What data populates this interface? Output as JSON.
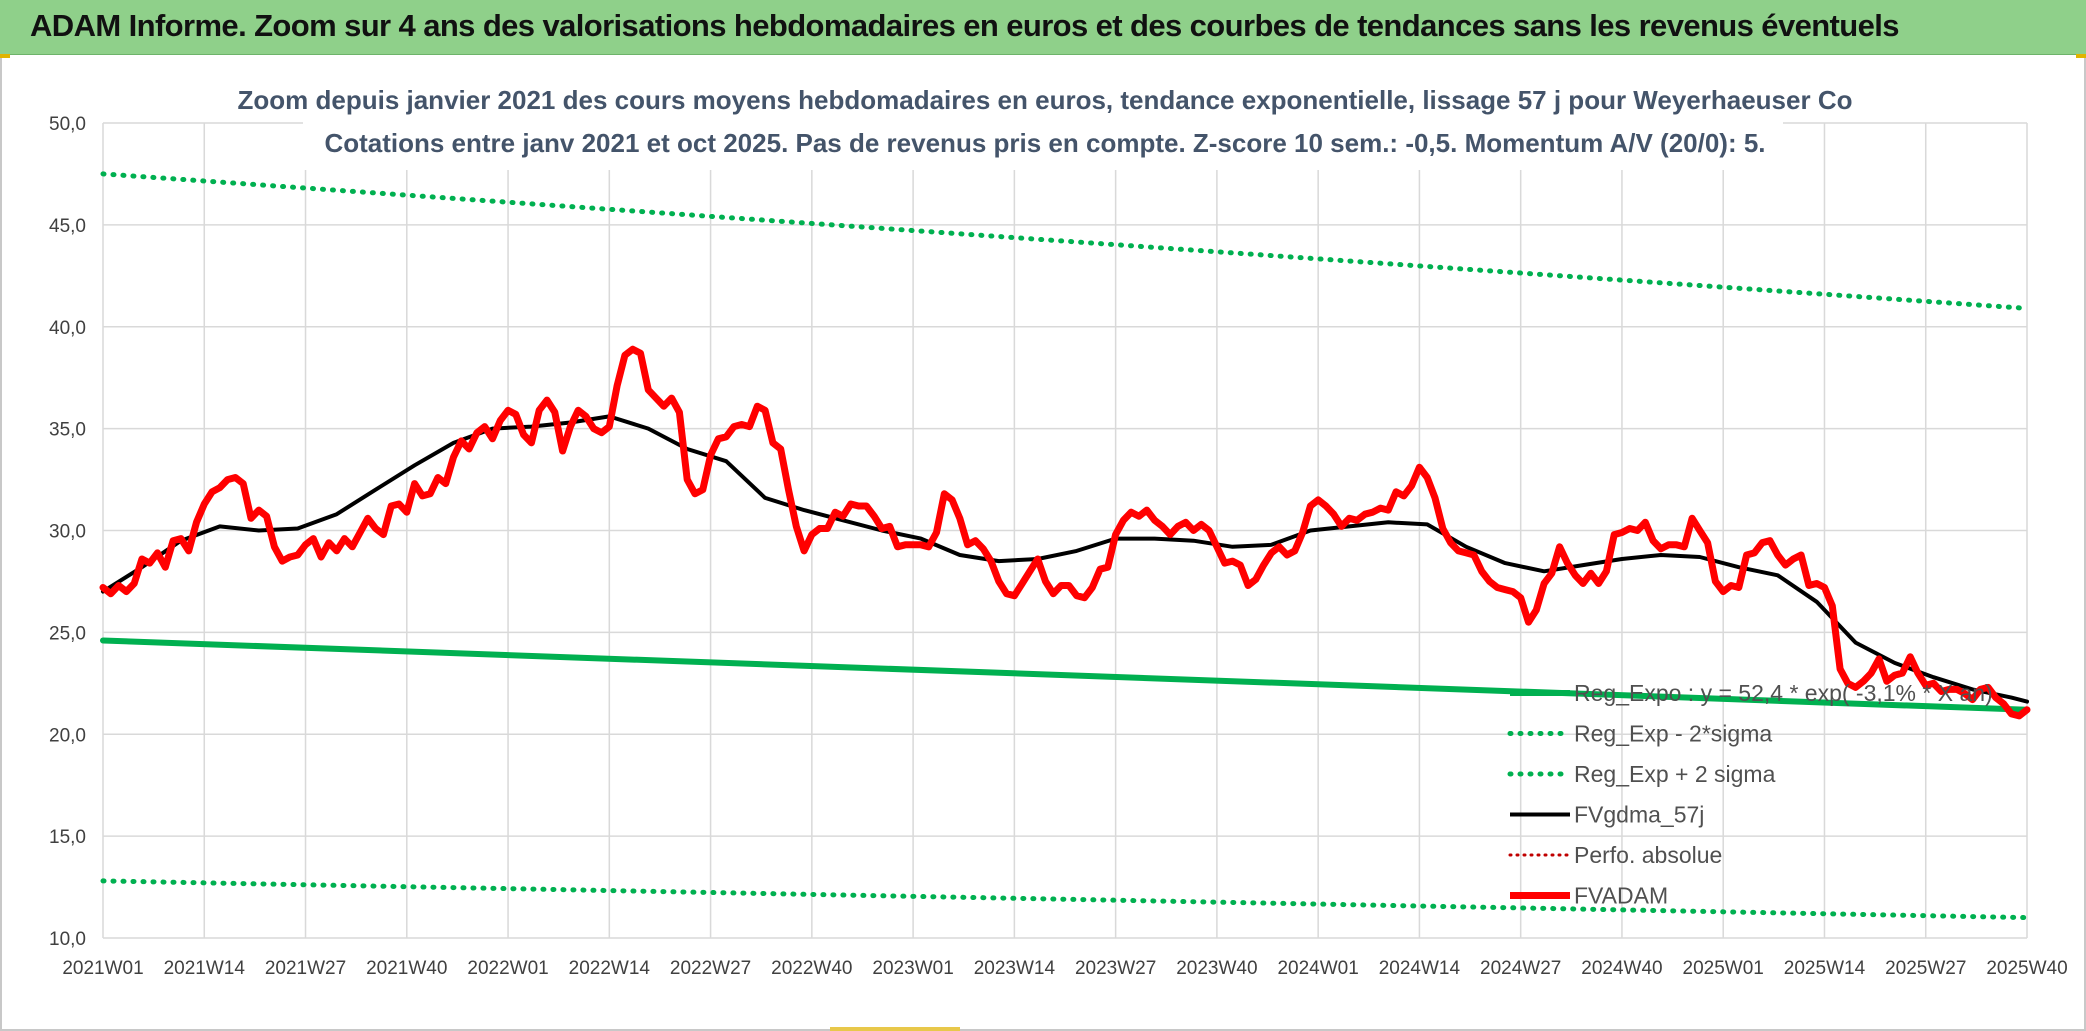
{
  "banner": {
    "title": "ADAM Informe. Zoom sur 4 ans des valorisations hebdomadaires en euros et des courbes de tendances sans les revenus éventuels"
  },
  "colors": {
    "banner": "#8fd08a",
    "trend_green": "#00b050",
    "fvadam_red": "#ff0000",
    "fvgdma_black": "#000000",
    "perfo_red": "#c00000",
    "grid": "#d9d9d9"
  },
  "chart_data": {
    "type": "line",
    "title": "Zoom depuis janvier 2021 des cours moyens hebdomadaires en euros, tendance exponentielle, lissage 57 j pour Weyerhaeuser Co",
    "subtitle": "Cotations entre janv 2021 et oct 2025. Pas de revenus pris en compte. Z-score 10 sem.: -0,5. Momentum A/V (20/0): 5.",
    "xlabel": "",
    "ylabel": "",
    "ylim": [
      10,
      50
    ],
    "y_ticks": [
      "10,0",
      "15,0",
      "20,0",
      "25,0",
      "30,0",
      "35,0",
      "40,0",
      "45,0",
      "50,0"
    ],
    "x_ticks": [
      "2021W01",
      "2021W14",
      "2021W27",
      "2021W40",
      "2022W01",
      "2022W14",
      "2022W27",
      "2022W40",
      "2023W01",
      "2023W14",
      "2023W27",
      "2023W40",
      "2024W01",
      "2024W14",
      "2024W27",
      "2024W40",
      "2025W01",
      "2025W14",
      "2025W27",
      "2025W40"
    ],
    "grid": true,
    "legend_position": "bottom-right",
    "x_range_weeks": [
      0,
      247
    ],
    "legend": [
      {
        "label": "Reg_Expo : y = 52,4 * exp( -3,1% * X an)",
        "style": "solid-thick-green"
      },
      {
        "label": "Reg_Exp - 2*sigma",
        "style": "dotted-green"
      },
      {
        "label": "Reg_Exp + 2 sigma",
        "style": "dotted-green"
      },
      {
        "label": "FVgdma_57j",
        "style": "solid-black"
      },
      {
        "label": "Perfo. absolue",
        "style": "dotted-red"
      },
      {
        "label": "FVADAM",
        "style": "solid-thick-red"
      }
    ],
    "series": [
      {
        "name": "Reg_Expo : y = 52,4 * exp( -3,1% * X an)",
        "x": [
          0,
          247
        ],
        "values": [
          24.6,
          21.2
        ]
      },
      {
        "name": "Reg_Exp - 2*sigma",
        "x": [
          0,
          247
        ],
        "values": [
          12.8,
          11.0
        ]
      },
      {
        "name": "Reg_Exp + 2 sigma",
        "x": [
          0,
          247
        ],
        "values": [
          47.5,
          40.9
        ]
      },
      {
        "name": "FVgdma_57j",
        "x": [
          0,
          5,
          10,
          15,
          20,
          25,
          30,
          35,
          40,
          45,
          50,
          55,
          60,
          65,
          70,
          75,
          80,
          85,
          90,
          95,
          100,
          105,
          110,
          115,
          120,
          125,
          130,
          135,
          140,
          145,
          150,
          155,
          160,
          165,
          170,
          175,
          180,
          185,
          190,
          195,
          200,
          205,
          210,
          215,
          220,
          225,
          230,
          235,
          240,
          245,
          247
        ],
        "values": [
          27.0,
          28.2,
          29.5,
          30.2,
          30.0,
          30.1,
          30.8,
          32.0,
          33.2,
          34.3,
          35.0,
          35.1,
          35.3,
          35.6,
          35.0,
          34.0,
          33.4,
          31.6,
          31.0,
          30.5,
          30.0,
          29.6,
          28.8,
          28.5,
          28.6,
          29.0,
          29.6,
          29.6,
          29.5,
          29.2,
          29.3,
          30.0,
          30.2,
          30.4,
          30.3,
          29.2,
          28.4,
          28.0,
          28.3,
          28.6,
          28.8,
          28.7,
          28.2,
          27.8,
          26.5,
          24.5,
          23.5,
          22.8,
          22.2,
          21.8,
          21.6
        ]
      },
      {
        "name": "Perfo. absolue",
        "x": [],
        "values": []
      },
      {
        "name": "FVADAM",
        "x": [
          0,
          1,
          2,
          3,
          4,
          5,
          6,
          7,
          8,
          9,
          10,
          11,
          12,
          13,
          14,
          15,
          16,
          17,
          18,
          19,
          20,
          21,
          22,
          23,
          24,
          25,
          26,
          27,
          28,
          29,
          30,
          31,
          32,
          33,
          34,
          35,
          36,
          37,
          38,
          39,
          40,
          41,
          42,
          43,
          44,
          45,
          46,
          47,
          48,
          49,
          50,
          51,
          52,
          53,
          54,
          55,
          56,
          57,
          58,
          59,
          60,
          61,
          62,
          63,
          64,
          65,
          66,
          67,
          68,
          69,
          70,
          71,
          72,
          73,
          74,
          75,
          76,
          77,
          78,
          79,
          80,
          81,
          82,
          83,
          84,
          85,
          86,
          87,
          88,
          89,
          90,
          91,
          92,
          93,
          94,
          95,
          96,
          97,
          98,
          99,
          100,
          101,
          102,
          103,
          104,
          105,
          106,
          107,
          108,
          109,
          110,
          111,
          112,
          113,
          114,
          115,
          116,
          117,
          118,
          119,
          120,
          121,
          122,
          123,
          124,
          125,
          126,
          127,
          128,
          129,
          130,
          131,
          132,
          133,
          134,
          135,
          136,
          137,
          138,
          139,
          140,
          141,
          142,
          143,
          144,
          145,
          146,
          147,
          148,
          149,
          150,
          151,
          152,
          153,
          154,
          155,
          156,
          157,
          158,
          159,
          160,
          161,
          162,
          163,
          164,
          165,
          166,
          167,
          168,
          169,
          170,
          171,
          172,
          173,
          174,
          175,
          176,
          177,
          178,
          179,
          180,
          181,
          182,
          183,
          184,
          185,
          186,
          187,
          188,
          189,
          190,
          191,
          192,
          193,
          194,
          195,
          196,
          197,
          198,
          199,
          200,
          201,
          202,
          203,
          204,
          205,
          206,
          207,
          208,
          209,
          210,
          211,
          212,
          213,
          214,
          215,
          216,
          217,
          218,
          219,
          220,
          221,
          222,
          223,
          224,
          225,
          226,
          227,
          228,
          229,
          230,
          231,
          232,
          233,
          234,
          235,
          236,
          237,
          238,
          239,
          240,
          241,
          242,
          243,
          244,
          245,
          246,
          247
        ],
        "values": [
          27.2,
          26.9,
          27.3,
          27.0,
          27.4,
          28.6,
          28.4,
          28.9,
          28.2,
          29.5,
          29.6,
          29.0,
          30.4,
          31.3,
          31.9,
          32.1,
          32.5,
          32.6,
          32.3,
          30.6,
          31.0,
          30.7,
          29.2,
          28.5,
          28.7,
          28.8,
          29.3,
          29.6,
          28.7,
          29.4,
          29.0,
          29.6,
          29.2,
          29.9,
          30.6,
          30.1,
          29.8,
          31.2,
          31.3,
          30.9,
          32.3,
          31.7,
          31.8,
          32.6,
          32.3,
          33.6,
          34.4,
          34.0,
          34.8,
          35.1,
          34.5,
          35.4,
          35.9,
          35.7,
          34.7,
          34.3,
          35.9,
          36.4,
          35.8,
          33.9,
          35.1,
          35.9,
          35.6,
          35.0,
          34.8,
          35.1,
          37.1,
          38.6,
          38.9,
          38.7,
          36.9,
          36.5,
          36.1,
          36.5,
          35.8,
          32.5,
          31.8,
          32.0,
          33.7,
          34.5,
          34.6,
          35.1,
          35.2,
          35.1,
          36.1,
          35.9,
          34.3,
          34.0,
          32.0,
          30.2,
          29.0,
          29.8,
          30.1,
          30.1,
          30.9,
          30.7,
          31.3,
          31.2,
          31.2,
          30.7,
          30.1,
          30.2,
          29.2,
          29.3,
          29.3,
          29.3,
          29.2,
          29.9,
          31.8,
          31.5,
          30.6,
          29.3,
          29.5,
          29.1,
          28.5,
          27.5,
          26.9,
          26.8,
          27.4,
          28.0,
          28.6,
          27.5,
          26.9,
          27.3,
          27.3,
          26.8,
          26.7,
          27.2,
          28.1,
          28.2,
          29.8,
          30.5,
          30.9,
          30.7,
          31.0,
          30.5,
          30.2,
          29.8,
          30.2,
          30.4,
          30.0,
          30.3,
          30.0,
          29.2,
          28.4,
          28.5,
          28.3,
          27.3,
          27.6,
          28.3,
          28.9,
          29.2,
          28.8,
          29.0,
          29.9,
          31.2,
          31.5,
          31.2,
          30.8,
          30.2,
          30.6,
          30.5,
          30.8,
          30.9,
          31.1,
          31.0,
          31.9,
          31.7,
          32.2,
          33.1,
          32.6,
          31.6,
          30.1,
          29.4,
          29.0,
          28.9,
          28.8,
          28.0,
          27.5,
          27.2,
          27.1,
          27.0,
          26.7,
          25.5,
          26.1,
          27.4,
          27.9,
          29.2,
          28.4,
          27.8,
          27.4,
          27.9,
          27.4,
          28.0,
          29.8,
          29.9,
          30.1,
          30.0,
          30.4,
          29.5,
          29.1,
          29.3,
          29.3,
          29.2,
          30.6,
          30.0,
          29.4,
          27.5,
          27.0,
          27.3,
          27.2,
          28.8,
          28.9,
          29.4,
          29.5,
          28.8,
          28.3,
          28.6,
          28.8,
          27.3,
          27.4,
          27.2,
          26.3,
          23.2,
          22.5,
          22.3,
          22.6,
          23.0,
          23.7,
          22.6,
          22.9,
          23.0,
          23.8,
          23.0,
          22.4,
          22.5,
          22.1,
          22.2,
          22.2,
          22.0,
          21.7,
          22.2,
          22.3,
          21.8,
          21.5,
          21.0,
          20.9,
          21.2
        ]
      }
    ]
  }
}
